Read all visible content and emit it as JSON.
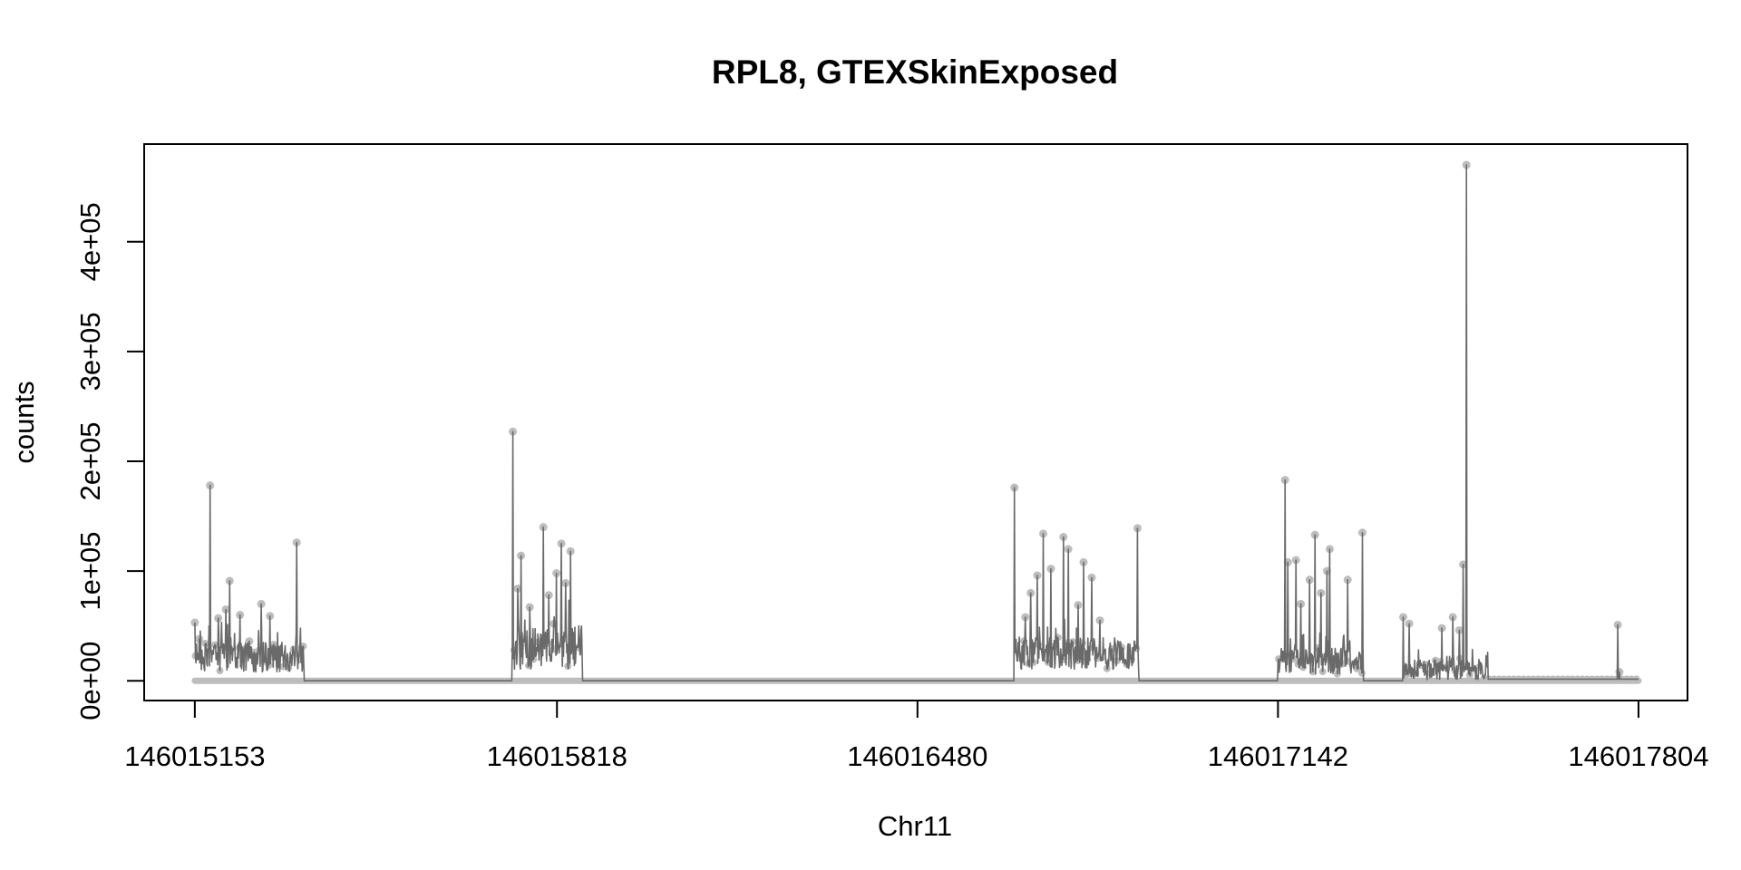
{
  "chart_data": {
    "type": "line",
    "title": "RPL8, GTEXSkinExposed",
    "xlabel": "Chr11",
    "ylabel": "counts",
    "xlim": [
      146015060,
      146017894
    ],
    "ylim": [
      -18000,
      489000
    ],
    "x_ticks": [
      146015153,
      146015818,
      146016480,
      146017142,
      146017804
    ],
    "x_tick_labels": [
      "146015153",
      "146015818",
      "146016480",
      "146017142",
      "146017804"
    ],
    "y_ticks": [
      0,
      100000,
      200000,
      300000,
      400000
    ],
    "y_tick_labels": [
      "0e+00",
      "1e+05",
      "2e+05",
      "3e+05",
      "4e+05"
    ],
    "grid": false,
    "legend": "none",
    "colors": {
      "line": "#6a6a6a",
      "points": "#bdbdbd",
      "axes": "#000000"
    },
    "regions": [
      {
        "from": 146015153,
        "to": 146015353,
        "base": 22000,
        "amp": 14000,
        "seed": 3
      },
      {
        "from": 146015736,
        "to": 146015864,
        "base": 30000,
        "amp": 20000,
        "seed": 7
      },
      {
        "from": 146016658,
        "to": 146016886,
        "base": 25000,
        "amp": 15000,
        "seed": 11
      },
      {
        "from": 146017142,
        "to": 146017298,
        "base": 18000,
        "amp": 12000,
        "seed": 17
      },
      {
        "from": 146017372,
        "to": 146017527,
        "base": 10000,
        "amp": 9000,
        "seed": 23
      }
    ],
    "tail": {
      "from": 146017527,
      "to": 146017804,
      "value": 1500
    },
    "peaks": [
      [
        146015153,
        53000
      ],
      [
        146015161,
        38000
      ],
      [
        146015181,
        178000
      ],
      [
        146015196,
        57000
      ],
      [
        146015210,
        65000
      ],
      [
        146015217,
        91000
      ],
      [
        146015236,
        60000
      ],
      [
        146015253,
        36000
      ],
      [
        146015275,
        70000
      ],
      [
        146015291,
        59000
      ],
      [
        146015340,
        126000
      ],
      [
        146015737,
        227000
      ],
      [
        146015746,
        84000
      ],
      [
        146015752,
        114000
      ],
      [
        146015768,
        67000
      ],
      [
        146015793,
        140000
      ],
      [
        146015803,
        78000
      ],
      [
        146015812,
        52000
      ],
      [
        146015817,
        98000
      ],
      [
        146015826,
        125000
      ],
      [
        146015834,
        89000
      ],
      [
        146015843,
        118000
      ],
      [
        146016658,
        176000
      ],
      [
        146016678,
        58000
      ],
      [
        146016688,
        80000
      ],
      [
        146016700,
        96000
      ],
      [
        146016711,
        134000
      ],
      [
        146016725,
        102000
      ],
      [
        146016748,
        131000
      ],
      [
        146016757,
        120000
      ],
      [
        146016775,
        69000
      ],
      [
        146016785,
        108000
      ],
      [
        146016800,
        94000
      ],
      [
        146016815,
        55000
      ],
      [
        146016884,
        139000
      ],
      [
        146017155,
        183000
      ],
      [
        146017160,
        108000
      ],
      [
        146017175,
        110000
      ],
      [
        146017184,
        70000
      ],
      [
        146017200,
        92000
      ],
      [
        146017210,
        133000
      ],
      [
        146017221,
        80000
      ],
      [
        146017232,
        100000
      ],
      [
        146017237,
        120000
      ],
      [
        146017270,
        92000
      ],
      [
        146017297,
        135000
      ],
      [
        146017372,
        58000
      ],
      [
        146017383,
        52000
      ],
      [
        146017443,
        48000
      ],
      [
        146017463,
        58000
      ],
      [
        146017475,
        46000
      ],
      [
        146017482,
        106000
      ],
      [
        146017488,
        470000
      ],
      [
        146017766,
        51000
      ],
      [
        146017769,
        8000
      ]
    ]
  }
}
